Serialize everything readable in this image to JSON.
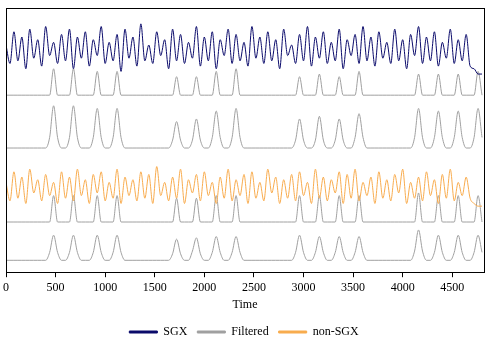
{
  "chart_data": {
    "type": "line",
    "x_label": "Time",
    "x": [
      0,
      40,
      80,
      120,
      160,
      200,
      240,
      280,
      320,
      360,
      400,
      440,
      480,
      520,
      560,
      600,
      640,
      680,
      720,
      760,
      800,
      840,
      880,
      920,
      960,
      1000,
      1040,
      1080,
      1120,
      1160,
      1200,
      1240,
      1280,
      1320,
      1360,
      1400,
      1440,
      1480,
      1520,
      1560,
      1600,
      1640,
      1680,
      1720,
      1760,
      1800,
      1840,
      1880,
      1920,
      1960,
      2000,
      2040,
      2080,
      2120,
      2160,
      2200,
      2240,
      2280,
      2320,
      2360,
      2400,
      2440,
      2480,
      2520,
      2560,
      2600,
      2640,
      2680,
      2720,
      2760,
      2800,
      2840,
      2880,
      2920,
      2960,
      3000,
      3040,
      3080,
      3120,
      3160,
      3200,
      3240,
      3280,
      3320,
      3360,
      3400,
      3440,
      3480,
      3520,
      3560,
      3600,
      3640,
      3680,
      3720,
      3760,
      3800,
      3840,
      3880,
      3920,
      3960,
      4000,
      4040,
      4080,
      4120,
      4160,
      4200,
      4240,
      4280,
      4320,
      4360,
      4400,
      4440,
      4480,
      4520,
      4560,
      4600,
      4640,
      4680,
      4720,
      4760,
      4800
    ],
    "series": [
      {
        "name": "SGX",
        "color": "#0b0b6b",
        "values": [
          8.6,
          7.9,
          9.1,
          8.0,
          8.9,
          7.7,
          9.2,
          8.1,
          8.8,
          7.8,
          9.3,
          8.2,
          8.7,
          7.9,
          9.0,
          8.0,
          9.2,
          7.7,
          8.9,
          8.1,
          9.1,
          7.8,
          8.8,
          8.2,
          9.3,
          7.9,
          8.7,
          8.0,
          9.0,
          7.6,
          9.2,
          8.1,
          8.9,
          7.8,
          9.4,
          8.0,
          8.6,
          7.9,
          9.1,
          8.2,
          8.8,
          7.7,
          9.2,
          8.0,
          9.0,
          7.9,
          8.7,
          8.1,
          9.3,
          7.8,
          8.9,
          8.0,
          9.1,
          7.7,
          8.8,
          8.2,
          9.2,
          7.9,
          9.0,
          8.0,
          8.7,
          7.8,
          9.3,
          8.1,
          8.9,
          7.9,
          9.1,
          8.0,
          8.8,
          7.7,
          9.2,
          8.2,
          8.6,
          7.9,
          9.0,
          8.0,
          9.3,
          7.8,
          8.9,
          8.1,
          9.1,
          7.9,
          8.7,
          8.0,
          9.2,
          7.7,
          8.8,
          8.2,
          9.0,
          7.9,
          9.3,
          8.0,
          8.9,
          7.8,
          9.1,
          8.1,
          8.7,
          7.9,
          9.2,
          8.0,
          8.8,
          7.7,
          9.0,
          8.2,
          9.3,
          7.9,
          8.9,
          8.0,
          9.1,
          7.8,
          8.7,
          8.1,
          9.2,
          7.9,
          8.8,
          8.0,
          9.0,
          7.8,
          7.7,
          7.5,
          7.5
        ]
      },
      {
        "name": "Filtered",
        "color": "#a0a0a0",
        "values": [
          6.7,
          6.7,
          6.7,
          6.7,
          6.7,
          6.7,
          6.7,
          6.7,
          6.7,
          6.7,
          6.7,
          6.7,
          7.7,
          6.7,
          6.7,
          6.7,
          6.7,
          7.7,
          6.7,
          6.7,
          6.7,
          6.7,
          6.7,
          7.6,
          6.7,
          6.7,
          6.7,
          6.7,
          7.6,
          6.7,
          6.7,
          6.7,
          6.7,
          6.7,
          6.7,
          6.7,
          6.7,
          6.7,
          6.7,
          6.7,
          6.7,
          6.7,
          6.7,
          7.4,
          6.7,
          6.7,
          6.7,
          6.7,
          7.4,
          6.7,
          6.7,
          6.7,
          6.7,
          7.6,
          6.7,
          6.7,
          6.7,
          6.7,
          7.7,
          6.7,
          6.7,
          6.7,
          6.7,
          6.7,
          6.7,
          6.7,
          6.7,
          6.7,
          6.7,
          6.7,
          6.7,
          6.7,
          6.7,
          6.7,
          7.4,
          6.7,
          6.7,
          6.7,
          6.7,
          7.5,
          6.7,
          6.7,
          6.7,
          6.7,
          7.4,
          6.7,
          6.7,
          6.7,
          6.7,
          7.6,
          6.7,
          6.7,
          6.7,
          6.7,
          6.7,
          6.7,
          6.7,
          6.7,
          6.7,
          6.7,
          6.7,
          6.7,
          6.7,
          6.7,
          7.5,
          6.7,
          6.7,
          6.7,
          6.7,
          7.5,
          6.7,
          6.7,
          6.7,
          6.7,
          7.5,
          6.7,
          6.7,
          6.7,
          6.7,
          7.6,
          6.7
        ]
      },
      {
        "name": "Filtered",
        "color": "#a0a0a0",
        "values": [
          4.7,
          4.7,
          4.7,
          4.7,
          4.7,
          4.7,
          4.7,
          4.7,
          4.7,
          4.7,
          4.7,
          5.1,
          6.3,
          5.1,
          4.7,
          4.7,
          5.1,
          6.3,
          5.1,
          4.7,
          4.7,
          4.7,
          5.1,
          6.2,
          5.1,
          4.7,
          4.7,
          5.1,
          6.2,
          5.1,
          4.7,
          4.7,
          4.7,
          4.7,
          4.7,
          4.7,
          4.7,
          4.7,
          4.7,
          4.7,
          4.7,
          4.7,
          5.0,
          5.7,
          5.0,
          4.7,
          4.7,
          5.0,
          5.8,
          5.0,
          4.7,
          4.7,
          5.1,
          6.1,
          5.1,
          4.7,
          4.7,
          5.1,
          6.2,
          5.1,
          4.7,
          4.7,
          4.7,
          4.7,
          4.7,
          4.7,
          4.7,
          4.7,
          4.7,
          4.7,
          4.7,
          4.7,
          4.7,
          5.0,
          5.8,
          5.0,
          4.7,
          4.7,
          5.0,
          5.9,
          5.0,
          4.7,
          4.7,
          5.0,
          5.8,
          5.0,
          4.7,
          4.7,
          5.1,
          6.0,
          5.1,
          4.7,
          4.7,
          4.7,
          4.7,
          4.7,
          4.7,
          4.7,
          4.7,
          4.7,
          4.7,
          4.7,
          4.7,
          5.1,
          6.2,
          5.1,
          4.7,
          4.7,
          5.1,
          6.1,
          5.1,
          4.7,
          4.7,
          5.1,
          6.1,
          5.1,
          4.7,
          4.7,
          5.1,
          6.2,
          5.1
        ]
      },
      {
        "name": "non-SGX",
        "color": "#f8ac4f",
        "values": [
          3.4,
          2.7,
          3.8,
          2.8,
          3.6,
          2.6,
          3.9,
          3.0,
          3.5,
          2.7,
          3.7,
          2.9,
          3.4,
          2.6,
          3.8,
          2.8,
          3.6,
          2.7,
          3.9,
          2.9,
          3.5,
          2.6,
          3.7,
          3.0,
          3.8,
          2.7,
          3.4,
          2.8,
          3.9,
          2.6,
          3.6,
          2.9,
          3.5,
          2.7,
          3.8,
          2.8,
          3.7,
          2.6,
          4.0,
          2.9,
          3.4,
          2.7,
          3.6,
          2.8,
          3.9,
          2.6,
          3.5,
          3.0,
          3.7,
          2.7,
          3.8,
          2.9,
          3.4,
          2.6,
          3.6,
          2.8,
          3.9,
          2.7,
          3.5,
          2.9,
          3.7,
          2.6,
          3.8,
          2.8,
          3.4,
          2.7,
          3.9,
          3.0,
          3.6,
          2.6,
          3.5,
          2.8,
          3.7,
          2.7,
          3.8,
          2.9,
          3.4,
          2.6,
          3.9,
          2.8,
          3.6,
          2.7,
          3.5,
          3.0,
          3.8,
          2.6,
          3.7,
          2.8,
          3.9,
          2.7,
          3.4,
          2.9,
          3.6,
          2.6,
          3.8,
          2.8,
          3.5,
          2.7,
          3.7,
          3.0,
          3.9,
          2.6,
          3.4,
          2.8,
          3.6,
          2.7,
          3.8,
          2.9,
          3.5,
          2.6,
          3.7,
          2.8,
          3.9,
          2.7,
          3.4,
          2.9,
          3.6,
          2.8,
          2.6,
          2.5,
          2.5
        ]
      },
      {
        "name": "Filtered",
        "color": "#a0a0a0",
        "values": [
          1.9,
          1.9,
          1.9,
          1.9,
          1.9,
          1.9,
          1.9,
          1.9,
          1.9,
          1.9,
          1.9,
          1.9,
          2.9,
          1.9,
          1.9,
          1.9,
          1.9,
          2.9,
          1.9,
          1.9,
          1.9,
          1.9,
          1.9,
          2.9,
          1.9,
          1.9,
          1.9,
          1.9,
          2.9,
          1.9,
          1.9,
          1.9,
          1.9,
          1.9,
          1.9,
          1.9,
          1.9,
          1.9,
          1.9,
          1.9,
          1.9,
          1.9,
          1.9,
          2.8,
          1.9,
          1.9,
          1.9,
          1.9,
          2.8,
          1.9,
          1.9,
          1.9,
          1.9,
          2.9,
          1.9,
          1.9,
          1.9,
          1.9,
          2.9,
          1.9,
          1.9,
          1.9,
          1.9,
          1.9,
          1.9,
          1.9,
          1.9,
          1.9,
          1.9,
          1.9,
          1.9,
          1.9,
          1.9,
          1.9,
          2.9,
          1.9,
          1.9,
          1.9,
          1.9,
          2.9,
          1.9,
          1.9,
          1.9,
          1.9,
          2.9,
          1.9,
          1.9,
          1.9,
          1.9,
          2.9,
          1.9,
          1.9,
          1.9,
          1.9,
          1.9,
          1.9,
          1.9,
          1.9,
          1.9,
          1.9,
          1.9,
          1.9,
          1.9,
          1.9,
          3.0,
          1.9,
          1.9,
          1.9,
          1.9,
          2.9,
          1.9,
          1.9,
          1.9,
          1.9,
          2.9,
          1.9,
          1.9,
          1.9,
          1.9,
          2.9,
          1.9
        ]
      },
      {
        "name": "Filtered",
        "color": "#a0a0a0",
        "values": [
          0.45,
          0.45,
          0.45,
          0.45,
          0.45,
          0.45,
          0.45,
          0.45,
          0.45,
          0.45,
          0.45,
          0.75,
          1.4,
          0.75,
          0.45,
          0.45,
          0.75,
          1.4,
          0.75,
          0.45,
          0.45,
          0.45,
          0.75,
          1.4,
          0.75,
          0.45,
          0.45,
          0.75,
          1.4,
          0.75,
          0.45,
          0.45,
          0.45,
          0.45,
          0.45,
          0.45,
          0.45,
          0.45,
          0.45,
          0.45,
          0.45,
          0.45,
          0.7,
          1.25,
          0.7,
          0.45,
          0.45,
          0.8,
          1.3,
          0.7,
          0.45,
          0.45,
          0.75,
          1.35,
          0.75,
          0.45,
          0.45,
          0.75,
          1.35,
          0.75,
          0.45,
          0.45,
          0.45,
          0.45,
          0.45,
          0.45,
          0.45,
          0.45,
          0.45,
          0.45,
          0.45,
          0.45,
          0.45,
          0.75,
          1.4,
          0.75,
          0.45,
          0.45,
          0.75,
          1.35,
          0.75,
          0.45,
          0.45,
          0.75,
          1.35,
          0.75,
          0.45,
          0.45,
          0.75,
          1.35,
          0.75,
          0.45,
          0.45,
          0.45,
          0.45,
          0.45,
          0.45,
          0.45,
          0.45,
          0.45,
          0.45,
          0.45,
          0.45,
          0.8,
          1.6,
          0.8,
          0.45,
          0.45,
          0.75,
          1.4,
          0.75,
          0.45,
          0.45,
          0.75,
          1.4,
          0.75,
          0.45,
          0.45,
          0.75,
          1.4,
          0.75
        ]
      }
    ],
    "xlim": [
      0,
      4820
    ],
    "xticks": [
      0,
      500,
      1000,
      1500,
      2000,
      2500,
      3000,
      3500,
      4000,
      4500
    ],
    "ylim": [
      0,
      10
    ],
    "grid": false,
    "legend": "bottom",
    "tick_labels": "x"
  }
}
